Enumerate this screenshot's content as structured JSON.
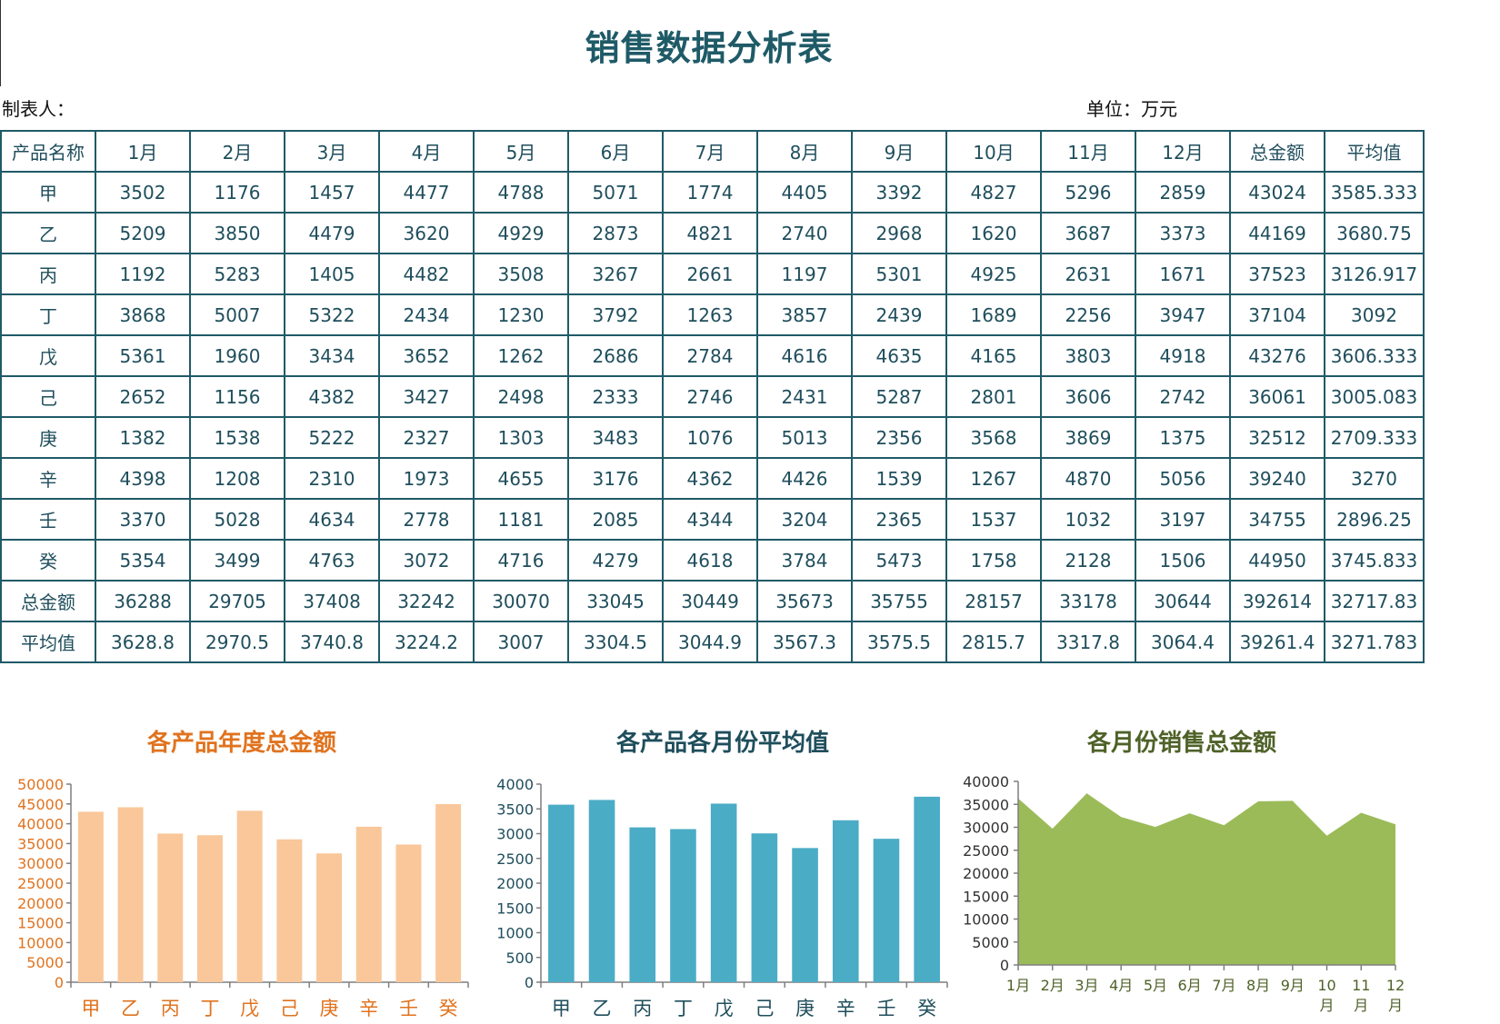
{
  "title": "销售数据分析表",
  "meta": {
    "preparer": "制表人：",
    "unit": "单位：万元"
  },
  "table": {
    "headers": [
      "产品名称",
      "1月",
      "2月",
      "3月",
      "4月",
      "5月",
      "6月",
      "7月",
      "8月",
      "9月",
      "10月",
      "11月",
      "12月",
      "总金额",
      "平均值"
    ],
    "rows": [
      [
        "甲",
        "3502",
        "1176",
        "1457",
        "4477",
        "4788",
        "5071",
        "1774",
        "4405",
        "3392",
        "4827",
        "5296",
        "2859",
        "43024",
        "3585.333"
      ],
      [
        "乙",
        "5209",
        "3850",
        "4479",
        "3620",
        "4929",
        "2873",
        "4821",
        "2740",
        "2968",
        "1620",
        "3687",
        "3373",
        "44169",
        "3680.75"
      ],
      [
        "丙",
        "1192",
        "5283",
        "1405",
        "4482",
        "3508",
        "3267",
        "2661",
        "1197",
        "5301",
        "4925",
        "2631",
        "1671",
        "37523",
        "3126.917"
      ],
      [
        "丁",
        "3868",
        "5007",
        "5322",
        "2434",
        "1230",
        "3792",
        "1263",
        "3857",
        "2439",
        "1689",
        "2256",
        "3947",
        "37104",
        "3092"
      ],
      [
        "戊",
        "5361",
        "1960",
        "3434",
        "3652",
        "1262",
        "2686",
        "2784",
        "4616",
        "4635",
        "4165",
        "3803",
        "4918",
        "43276",
        "3606.333"
      ],
      [
        "己",
        "2652",
        "1156",
        "4382",
        "3427",
        "2498",
        "2333",
        "2746",
        "2431",
        "5287",
        "2801",
        "3606",
        "2742",
        "36061",
        "3005.083"
      ],
      [
        "庚",
        "1382",
        "1538",
        "5222",
        "2327",
        "1303",
        "3483",
        "1076",
        "5013",
        "2356",
        "3568",
        "3869",
        "1375",
        "32512",
        "2709.333"
      ],
      [
        "辛",
        "4398",
        "1208",
        "2310",
        "1973",
        "4655",
        "3176",
        "4362",
        "4426",
        "1539",
        "1267",
        "4870",
        "5056",
        "39240",
        "3270"
      ],
      [
        "壬",
        "3370",
        "5028",
        "4634",
        "2778",
        "1181",
        "2085",
        "4344",
        "3204",
        "2365",
        "1537",
        "1032",
        "3197",
        "34755",
        "2896.25"
      ],
      [
        "癸",
        "5354",
        "3499",
        "4763",
        "3072",
        "4716",
        "4279",
        "4618",
        "3784",
        "5473",
        "1758",
        "2128",
        "1506",
        "44950",
        "3745.833"
      ],
      [
        "总金额",
        "36288",
        "29705",
        "37408",
        "32242",
        "30070",
        "33045",
        "30449",
        "35673",
        "35755",
        "28157",
        "33178",
        "30644",
        "392614",
        "32717.83"
      ],
      [
        "平均值",
        "3628.8",
        "2970.5",
        "3740.8",
        "3224.2",
        "3007",
        "3304.5",
        "3044.9",
        "3567.3",
        "3575.5",
        "2815.7",
        "3317.8",
        "3064.4",
        "39261.4",
        "3271.783"
      ]
    ]
  },
  "chart_data": [
    {
      "type": "bar",
      "title": "各产品年度总金额",
      "categories": [
        "甲",
        "乙",
        "丙",
        "丁",
        "戊",
        "己",
        "庚",
        "辛",
        "壬",
        "癸"
      ],
      "values": [
        43024,
        44169,
        37523,
        37104,
        43276,
        36061,
        32512,
        39240,
        34755,
        44950
      ],
      "ylim": [
        0,
        50000
      ],
      "yticks": [
        "0",
        "5000",
        "10000",
        "15000",
        "20000",
        "25000",
        "30000",
        "35000",
        "40000",
        "45000",
        "50000"
      ],
      "grid": false,
      "color": "#f9c79a",
      "text_color": "#e0731f"
    },
    {
      "type": "bar",
      "title": "各产品各月份平均值",
      "categories": [
        "甲",
        "乙",
        "丙",
        "丁",
        "戊",
        "己",
        "庚",
        "辛",
        "壬",
        "癸"
      ],
      "values": [
        3585.333,
        3680.75,
        3126.917,
        3092,
        3606.333,
        3005.083,
        2709.333,
        3270,
        2896.25,
        3745.833
      ],
      "ylim": [
        0,
        4000
      ],
      "yticks": [
        "0",
        "500",
        "1000",
        "1500",
        "2000",
        "2500",
        "3000",
        "3500",
        "4000"
      ],
      "grid": false,
      "color": "#4bacc6",
      "text_color": "#1f4e5c"
    },
    {
      "type": "area",
      "title": "各月份销售总金额",
      "categories": [
        "1月",
        "2月",
        "3月",
        "4月",
        "5月",
        "6月",
        "7月",
        "8月",
        "9月",
        "10月",
        "11月",
        "12月"
      ],
      "values": [
        36288,
        29705,
        37408,
        32242,
        30070,
        33045,
        30449,
        35673,
        35755,
        28157,
        33178,
        30644
      ],
      "ylim": [
        0,
        40000
      ],
      "yticks": [
        "0",
        "5000",
        "10000",
        "15000",
        "20000",
        "25000",
        "30000",
        "35000",
        "40000"
      ],
      "grid": false,
      "color": "#9bbb59",
      "text_color": "#4f6228"
    }
  ]
}
